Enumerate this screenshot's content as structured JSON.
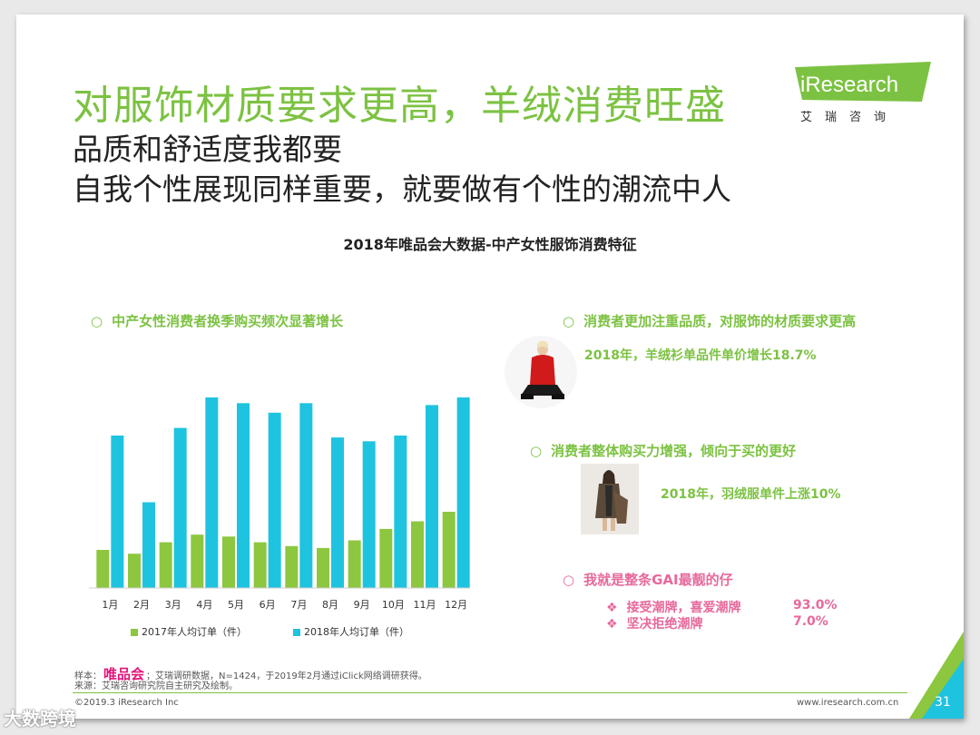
{
  "title": "对服饰材质要求更高，羊绒消费旺盛",
  "subtitle_lines": [
    "品质和舒适度我都要",
    "自我个性展现同样重要，就要做有个性的潮流中人"
  ],
  "logo": {
    "text": "iResearch",
    "cn": "艾瑞咨询",
    "color": "#7cc242"
  },
  "chart_title": "2018年唯品会大数据-中产女性服饰消费特征",
  "bullets": {
    "b1": "中产女性消费者换季购买频次显著增长",
    "b2": "消费者更加注重品质，对服饰的材质要求更高",
    "b2_note": "2018年，羊绒衫单品件单价增长18.7%",
    "b3": "消费者整体购买力增强，倾向于买的更好",
    "b3_note": "2018年，羽绒服单件上涨10%",
    "b4": "我就是整条GAI最靓的仔"
  },
  "bullet_marker": "○",
  "trend_marker": "❖",
  "trends": [
    {
      "label": "接受潮牌，喜爱潮牌",
      "value": "93.0%"
    },
    {
      "label": "坚决拒绝潮牌",
      "value": "7.0%"
    }
  ],
  "colors": {
    "green": "#7cc242",
    "cyan": "#1ec3e0",
    "lime": "#8dc63f",
    "pink": "#e7699c",
    "brand": "#e0147a"
  },
  "chart_data": {
    "type": "bar",
    "categories": [
      "1月",
      "2月",
      "3月",
      "4月",
      "5月",
      "6月",
      "7月",
      "8月",
      "9月",
      "10月",
      "11月",
      "12月"
    ],
    "series": [
      {
        "name": "2017年人均订单（件）",
        "color": "#8dc63f",
        "values": [
          20,
          18,
          24,
          28,
          27,
          24,
          22,
          21,
          25,
          31,
          35,
          40
        ]
      },
      {
        "name": "2018年人均订单（件）",
        "color": "#1ec3e0",
        "values": [
          80,
          45,
          84,
          100,
          97,
          92,
          97,
          79,
          77,
          80,
          96,
          100
        ]
      }
    ],
    "ylim": [
      0,
      100
    ],
    "grid": false,
    "legend": "bottom"
  },
  "footer": {
    "sample_prefix": "样本：",
    "sample_brand": "唯品会",
    "sample_rest": "；艾瑞调研数据，N=1424，于2019年2月通过iClick网络调研获得。",
    "source": "来源：艾瑞咨询研究院自主研究及绘制。",
    "copyright": "©2019.3 iResearch Inc",
    "url": "www.iresearch.com.cn",
    "page": "31"
  },
  "watermark": "大数跨境"
}
